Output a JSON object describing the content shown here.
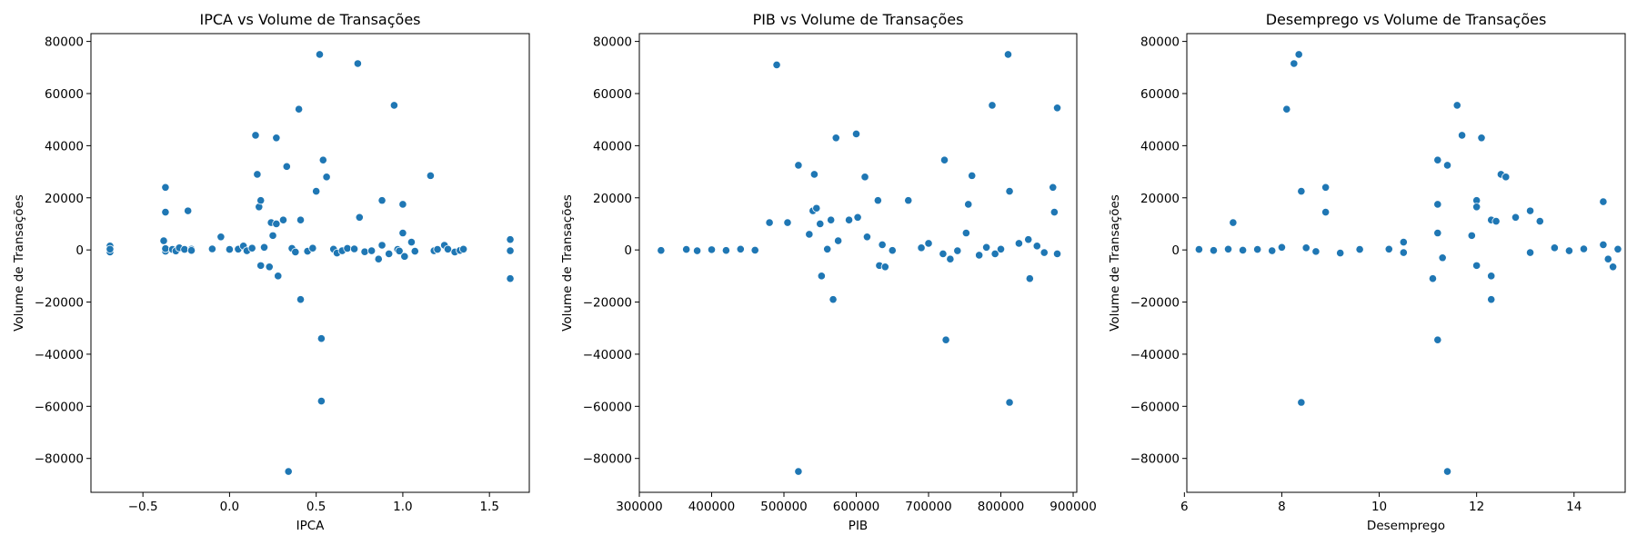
{
  "chart_data": [
    {
      "type": "scatter",
      "title": "IPCA vs Volume de Transações",
      "xlabel": "IPCA",
      "ylabel": "Volume de Transações",
      "xlim": [
        -0.8,
        1.73
      ],
      "ylim": [
        -93000,
        83000
      ],
      "xticks": [
        -0.5,
        0.0,
        0.5,
        1.0,
        1.5
      ],
      "xtick_labels": [
        "−0.5",
        "0.0",
        "0.5",
        "1.0",
        "1.5"
      ],
      "yticks": [
        -80000,
        -60000,
        -40000,
        -20000,
        0,
        20000,
        40000,
        60000,
        80000
      ],
      "ytick_labels": [
        "−80000",
        "−60000",
        "−40000",
        "−20000",
        "0",
        "20000",
        "40000",
        "60000",
        "80000"
      ],
      "marker_color": "#1f77b4",
      "grid": false,
      "points": [
        [
          -0.69,
          1500
        ],
        [
          -0.69,
          -800
        ],
        [
          -0.69,
          300
        ],
        [
          -0.38,
          3500
        ],
        [
          -0.37,
          24000
        ],
        [
          -0.37,
          14500
        ],
        [
          -0.37,
          -500
        ],
        [
          -0.37,
          500
        ],
        [
          -0.33,
          200
        ],
        [
          -0.31,
          -400
        ],
        [
          -0.29,
          800
        ],
        [
          -0.26,
          200
        ],
        [
          -0.24,
          15000
        ],
        [
          -0.22,
          300
        ],
        [
          -0.22,
          -200
        ],
        [
          -0.1,
          400
        ],
        [
          -0.05,
          5000
        ],
        [
          0.0,
          200
        ],
        [
          0.05,
          300
        ],
        [
          0.08,
          1500
        ],
        [
          0.1,
          -300
        ],
        [
          0.13,
          700
        ],
        [
          0.15,
          44000
        ],
        [
          0.16,
          29000
        ],
        [
          0.17,
          16500
        ],
        [
          0.18,
          19000
        ],
        [
          0.18,
          -6000
        ],
        [
          0.2,
          1000
        ],
        [
          0.23,
          -6500
        ],
        [
          0.24,
          10500
        ],
        [
          0.25,
          5500
        ],
        [
          0.27,
          43000
        ],
        [
          0.27,
          10000
        ],
        [
          0.28,
          -10000
        ],
        [
          0.31,
          11500
        ],
        [
          0.33,
          32000
        ],
        [
          0.34,
          -85000
        ],
        [
          0.36,
          600
        ],
        [
          0.38,
          -800
        ],
        [
          0.4,
          54000
        ],
        [
          0.41,
          11500
        ],
        [
          0.41,
          -19000
        ],
        [
          0.45,
          -500
        ],
        [
          0.48,
          700
        ],
        [
          0.5,
          22500
        ],
        [
          0.52,
          75000
        ],
        [
          0.53,
          -34000
        ],
        [
          0.53,
          -58000
        ],
        [
          0.54,
          34500
        ],
        [
          0.56,
          28000
        ],
        [
          0.6,
          300
        ],
        [
          0.62,
          -1200
        ],
        [
          0.65,
          -300
        ],
        [
          0.68,
          600
        ],
        [
          0.72,
          400
        ],
        [
          0.74,
          71500
        ],
        [
          0.75,
          12500
        ],
        [
          0.78,
          -700
        ],
        [
          0.82,
          -300
        ],
        [
          0.86,
          -3500
        ],
        [
          0.88,
          19000
        ],
        [
          0.88,
          1800
        ],
        [
          0.92,
          -1500
        ],
        [
          0.95,
          55500
        ],
        [
          0.97,
          200
        ],
        [
          0.98,
          -400
        ],
        [
          1.0,
          17500
        ],
        [
          1.0,
          6500
        ],
        [
          1.01,
          -2500
        ],
        [
          1.05,
          3000
        ],
        [
          1.07,
          -500
        ],
        [
          1.16,
          28500
        ],
        [
          1.18,
          -300
        ],
        [
          1.2,
          200
        ],
        [
          1.24,
          1800
        ],
        [
          1.26,
          300
        ],
        [
          1.3,
          -800
        ],
        [
          1.33,
          -200
        ],
        [
          1.35,
          300
        ],
        [
          1.62,
          4000
        ],
        [
          1.62,
          -300
        ],
        [
          1.62,
          -11000
        ]
      ]
    },
    {
      "type": "scatter",
      "title": "PIB vs Volume de Transações",
      "xlabel": "PIB",
      "ylabel": "Volume de Transações",
      "xlim": [
        300000,
        905000
      ],
      "ylim": [
        -93000,
        83000
      ],
      "xticks": [
        300000,
        400000,
        500000,
        600000,
        700000,
        800000,
        900000
      ],
      "xtick_labels": [
        "300000",
        "400000",
        "500000",
        "600000",
        "700000",
        "800000",
        "900000"
      ],
      "yticks": [
        -80000,
        -60000,
        -40000,
        -20000,
        0,
        20000,
        40000,
        60000,
        80000
      ],
      "ytick_labels": [
        "−80000",
        "−60000",
        "−40000",
        "−20000",
        "0",
        "20000",
        "40000",
        "60000",
        "80000"
      ],
      "marker_color": "#1f77b4",
      "grid": false,
      "points": [
        [
          330000,
          -200
        ],
        [
          365000,
          200
        ],
        [
          380000,
          -300
        ],
        [
          400000,
          100
        ],
        [
          420000,
          -200
        ],
        [
          440000,
          300
        ],
        [
          460000,
          -100
        ],
        [
          480000,
          10500
        ],
        [
          490000,
          71000
        ],
        [
          505000,
          10500
        ],
        [
          520000,
          32500
        ],
        [
          520000,
          -85000
        ],
        [
          535000,
          6000
        ],
        [
          540000,
          15000
        ],
        [
          542000,
          29000
        ],
        [
          545000,
          16000
        ],
        [
          550000,
          10000
        ],
        [
          552000,
          -10000
        ],
        [
          560000,
          300
        ],
        [
          565000,
          11500
        ],
        [
          568000,
          -19000
        ],
        [
          572000,
          43000
        ],
        [
          575000,
          3500
        ],
        [
          590000,
          11500
        ],
        [
          600000,
          44500
        ],
        [
          602000,
          12500
        ],
        [
          612000,
          28000
        ],
        [
          615000,
          5000
        ],
        [
          630000,
          19000
        ],
        [
          632000,
          -6000
        ],
        [
          636000,
          2000
        ],
        [
          640000,
          -6500
        ],
        [
          650000,
          -200
        ],
        [
          672000,
          19000
        ],
        [
          690000,
          800
        ],
        [
          700000,
          2500
        ],
        [
          720000,
          -1500
        ],
        [
          722000,
          34500
        ],
        [
          724000,
          -34500
        ],
        [
          730000,
          -3500
        ],
        [
          740000,
          -300
        ],
        [
          752000,
          6500
        ],
        [
          755000,
          17500
        ],
        [
          760000,
          28500
        ],
        [
          770000,
          -2000
        ],
        [
          780000,
          1000
        ],
        [
          788000,
          55500
        ],
        [
          792000,
          -1500
        ],
        [
          800000,
          300
        ],
        [
          810000,
          75000
        ],
        [
          812000,
          22500
        ],
        [
          812000,
          -58500
        ],
        [
          825000,
          2500
        ],
        [
          838000,
          4000
        ],
        [
          840000,
          -11000
        ],
        [
          850000,
          1500
        ],
        [
          860000,
          -1000
        ],
        [
          872000,
          24000
        ],
        [
          874000,
          14500
        ],
        [
          878000,
          54500
        ],
        [
          878000,
          -1500
        ]
      ]
    },
    {
      "type": "scatter",
      "title": "Desemprego vs Volume de Transações",
      "xlabel": "Desemprego",
      "ylabel": "Volume de Transações",
      "xlim": [
        6.05,
        15.05
      ],
      "ylim": [
        -93000,
        83000
      ],
      "xticks": [
        6,
        8,
        10,
        12,
        14
      ],
      "xtick_labels": [
        "6",
        "8",
        "10",
        "12",
        "14"
      ],
      "yticks": [
        -80000,
        -60000,
        -40000,
        -20000,
        0,
        20000,
        40000,
        60000,
        80000
      ],
      "ytick_labels": [
        "−80000",
        "−60000",
        "−40000",
        "−20000",
        "0",
        "20000",
        "40000",
        "60000",
        "80000"
      ],
      "marker_color": "#1f77b4",
      "grid": false,
      "points": [
        [
          6.3,
          200
        ],
        [
          6.6,
          -200
        ],
        [
          6.9,
          300
        ],
        [
          7.0,
          10500
        ],
        [
          7.2,
          -100
        ],
        [
          7.5,
          200
        ],
        [
          7.8,
          -300
        ],
        [
          8.0,
          1000
        ],
        [
          8.1,
          54000
        ],
        [
          8.25,
          71500
        ],
        [
          8.35,
          75000
        ],
        [
          8.4,
          22500
        ],
        [
          8.4,
          -58500
        ],
        [
          8.5,
          800
        ],
        [
          8.7,
          -600
        ],
        [
          8.9,
          24000
        ],
        [
          8.9,
          14500
        ],
        [
          9.2,
          -1200
        ],
        [
          9.6,
          200
        ],
        [
          10.2,
          300
        ],
        [
          10.5,
          3000
        ],
        [
          10.5,
          -1000
        ],
        [
          11.1,
          -11000
        ],
        [
          11.2,
          34500
        ],
        [
          11.2,
          17500
        ],
        [
          11.2,
          6500
        ],
        [
          11.2,
          -34500
        ],
        [
          11.3,
          -3000
        ],
        [
          11.4,
          32500
        ],
        [
          11.4,
          -85000
        ],
        [
          11.6,
          55500
        ],
        [
          11.7,
          44000
        ],
        [
          11.9,
          5500
        ],
        [
          12.0,
          19000
        ],
        [
          12.0,
          16500
        ],
        [
          12.0,
          -6000
        ],
        [
          12.1,
          43000
        ],
        [
          12.3,
          11500
        ],
        [
          12.3,
          -10000
        ],
        [
          12.3,
          -19000
        ],
        [
          12.4,
          11000
        ],
        [
          12.5,
          29000
        ],
        [
          12.6,
          28000
        ],
        [
          12.8,
          12500
        ],
        [
          13.1,
          15000
        ],
        [
          13.1,
          -1000
        ],
        [
          13.3,
          11000
        ],
        [
          13.6,
          800
        ],
        [
          13.9,
          -300
        ],
        [
          14.2,
          400
        ],
        [
          14.6,
          18500
        ],
        [
          14.6,
          2000
        ],
        [
          14.7,
          -3500
        ],
        [
          14.8,
          -6500
        ],
        [
          14.9,
          300
        ]
      ]
    }
  ]
}
